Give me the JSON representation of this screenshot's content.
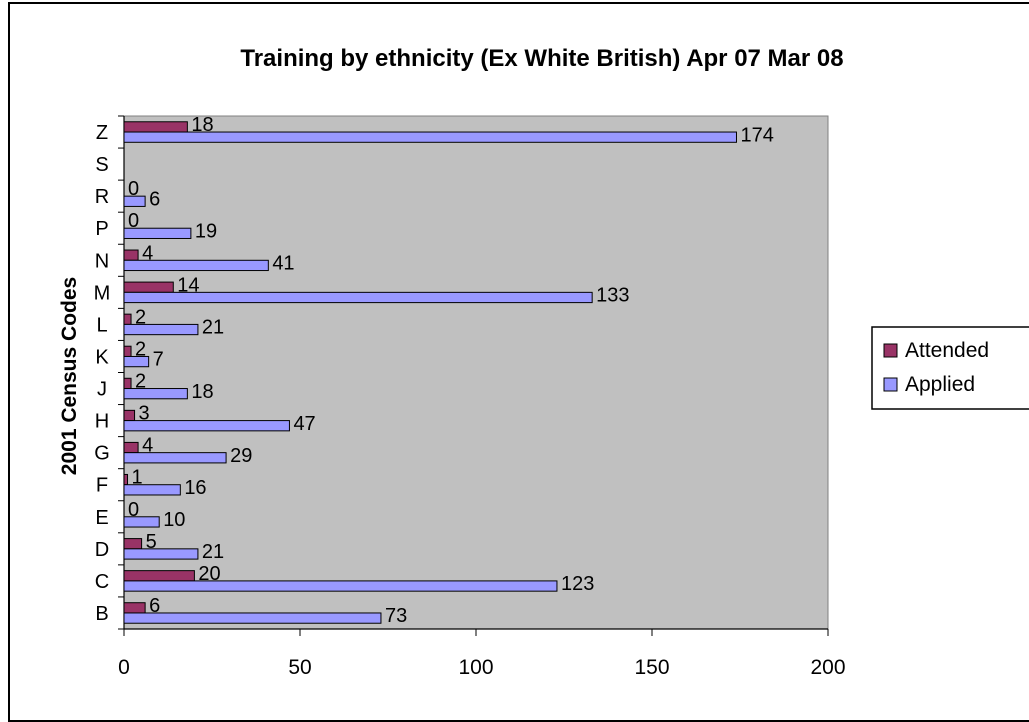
{
  "chart_data": {
    "type": "bar",
    "orientation": "horizontal",
    "title": "Training by ethnicity (Ex White British) Apr 07 Mar 08",
    "ylabel": "2001 Census Codes",
    "xlabel": "",
    "categories": [
      "B",
      "C",
      "D",
      "E",
      "F",
      "G",
      "H",
      "J",
      "K",
      "L",
      "M",
      "N",
      "P",
      "R",
      "S",
      "Z"
    ],
    "series": [
      {
        "name": "Attended",
        "color": "#993366",
        "values": [
          6,
          20,
          5,
          0,
          1,
          4,
          3,
          2,
          2,
          2,
          14,
          4,
          0,
          0,
          null,
          18
        ]
      },
      {
        "name": "Applied",
        "color": "#9999ff",
        "values": [
          73,
          123,
          21,
          10,
          16,
          29,
          47,
          18,
          7,
          21,
          133,
          41,
          19,
          6,
          null,
          174
        ]
      }
    ],
    "xlim": [
      0,
      200
    ],
    "xticks": [
      0,
      50,
      100,
      150,
      200
    ],
    "plot_background": "#c0c0c0",
    "grid": false,
    "legend_position": "right"
  }
}
